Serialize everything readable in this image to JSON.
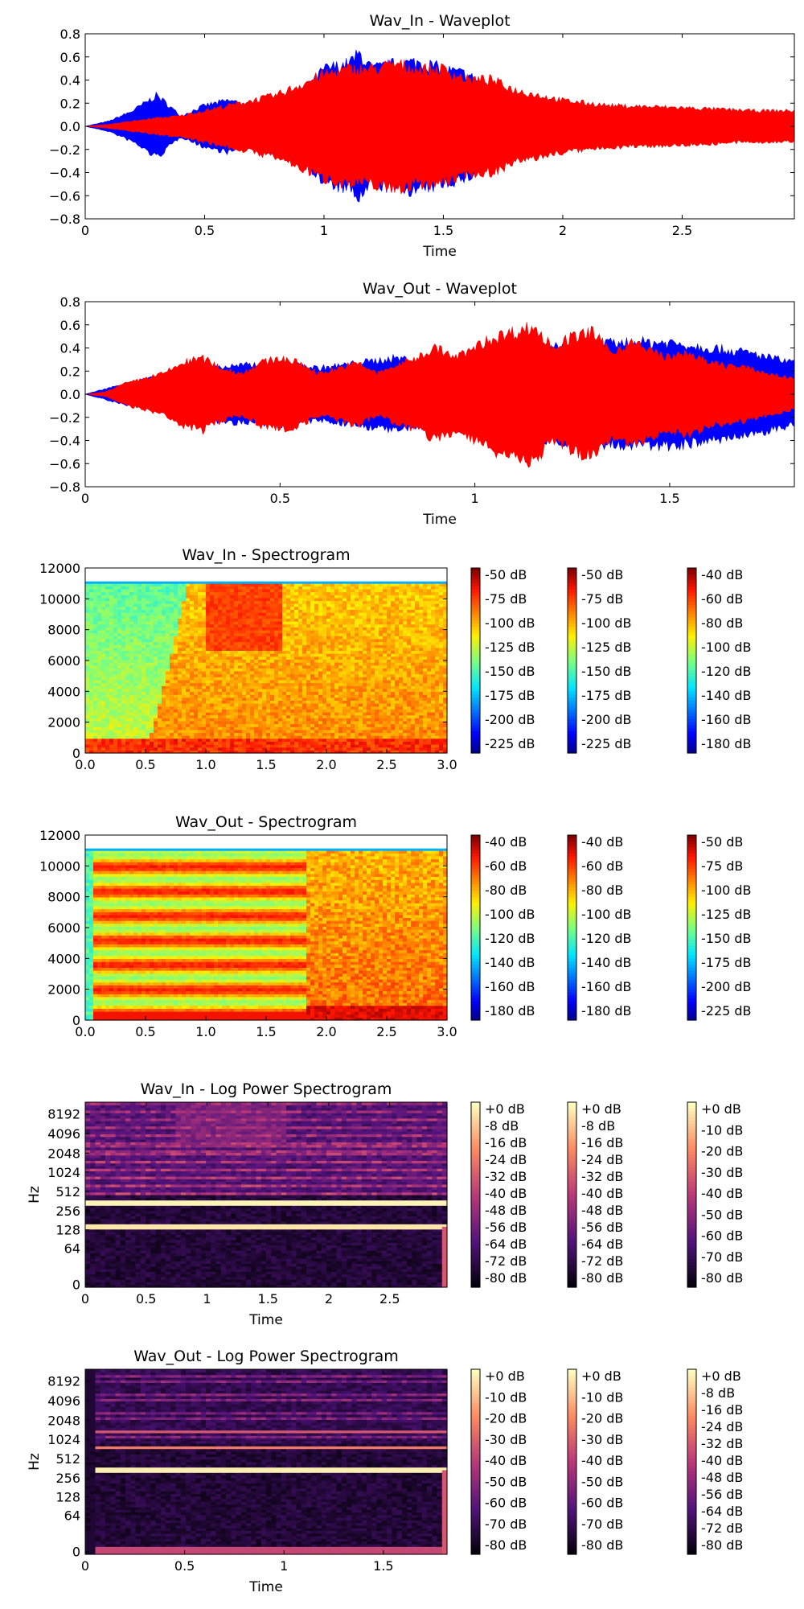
{
  "chart_data": [
    {
      "type": "line",
      "title": "Wav_In - Waveplot",
      "xlabel": "Time",
      "ylabel": "",
      "xlim": [
        0,
        2.97
      ],
      "ylim": [
        -0.8,
        0.8
      ],
      "x_ticks": [
        "0",
        "0.5",
        "1",
        "1.5",
        "2",
        "2.5"
      ],
      "y_ticks": [
        "0.8",
        "0.6",
        "0.4",
        "0.2",
        "0.0",
        "−0.2",
        "−0.4",
        "−0.6",
        "−0.8"
      ],
      "colors": [
        "#0000ff",
        "#ff0000"
      ],
      "series": [
        {
          "color": "#0000ff",
          "x": [
            0,
            0.1,
            0.2,
            0.3,
            0.4,
            0.5,
            0.6,
            0.7,
            0.8,
            0.9,
            1.0,
            1.1,
            1.15,
            1.2,
            1.3,
            1.4,
            1.5,
            1.6,
            1.7,
            1.8,
            1.9,
            2.0,
            2.5,
            2.97
          ],
          "values": [
            0,
            0.05,
            0.15,
            0.3,
            0.1,
            0.2,
            0.25,
            0.2,
            0.25,
            0.3,
            0.55,
            0.6,
            0.7,
            0.55,
            0.6,
            0.62,
            0.55,
            0.5,
            0.35,
            0.2,
            0.15,
            0.12,
            0.1,
            0.1
          ]
        },
        {
          "color": "#ff0000",
          "x": [
            0,
            0.1,
            0.2,
            0.3,
            0.4,
            0.5,
            0.6,
            0.7,
            0.8,
            0.9,
            1.0,
            1.1,
            1.2,
            1.3,
            1.4,
            1.5,
            1.6,
            1.7,
            1.8,
            1.9,
            2.0,
            2.2,
            2.5,
            2.8,
            2.97
          ],
          "values": [
            0,
            0.02,
            0.05,
            0.08,
            0.1,
            0.15,
            0.2,
            0.25,
            0.3,
            0.4,
            0.5,
            0.55,
            0.55,
            0.6,
            0.55,
            0.55,
            0.45,
            0.45,
            0.35,
            0.3,
            0.25,
            0.2,
            0.18,
            0.15,
            0.15
          ]
        }
      ]
    },
    {
      "type": "line",
      "title": "Wav_Out - Waveplot",
      "xlabel": "Time",
      "ylabel": "",
      "xlim": [
        0,
        1.82
      ],
      "ylim": [
        -0.8,
        0.8
      ],
      "x_ticks": [
        "0",
        "0.5",
        "1",
        "1.5"
      ],
      "y_ticks": [
        "0.8",
        "0.6",
        "0.4",
        "0.2",
        "0.0",
        "−0.2",
        "−0.4",
        "−0.6",
        "−0.8"
      ],
      "colors": [
        "#0000ff",
        "#ff0000"
      ],
      "series": [
        {
          "color": "#0000ff",
          "x": [
            0,
            0.1,
            0.3,
            0.5,
            0.6,
            0.7,
            0.8,
            0.9,
            1.0,
            1.2,
            1.4,
            1.5,
            1.6,
            1.7,
            1.82
          ],
          "values": [
            0,
            0.1,
            0.25,
            0.3,
            0.25,
            0.3,
            0.35,
            0.3,
            0.35,
            0.45,
            0.5,
            0.5,
            0.45,
            0.4,
            0.3
          ]
        },
        {
          "color": "#ff0000",
          "x": [
            0,
            0.05,
            0.1,
            0.15,
            0.2,
            0.25,
            0.3,
            0.35,
            0.4,
            0.45,
            0.5,
            0.55,
            0.6,
            0.65,
            0.7,
            0.75,
            0.8,
            0.85,
            0.9,
            0.95,
            1.0,
            1.05,
            1.1,
            1.15,
            1.2,
            1.25,
            1.3,
            1.35,
            1.4,
            1.45,
            1.5,
            1.55,
            1.6,
            1.65,
            1.7,
            1.75,
            1.82
          ],
          "values": [
            0,
            0.02,
            0.1,
            0.15,
            0.2,
            0.3,
            0.35,
            0.25,
            0.2,
            0.3,
            0.35,
            0.3,
            0.2,
            0.25,
            0.3,
            0.2,
            0.28,
            0.35,
            0.45,
            0.35,
            0.45,
            0.55,
            0.6,
            0.65,
            0.45,
            0.55,
            0.6,
            0.4,
            0.5,
            0.42,
            0.35,
            0.4,
            0.3,
            0.28,
            0.25,
            0.2,
            0.15
          ]
        }
      ]
    },
    {
      "type": "heatmap",
      "title": "Wav_In - Spectrogram",
      "xlabel": "",
      "ylabel": "",
      "xlim": [
        0,
        3.0
      ],
      "ylim": [
        0,
        12000
      ],
      "x_ticks": [
        "0.0",
        "0.5",
        "1.0",
        "1.5",
        "2.0",
        "2.5",
        "3.0"
      ],
      "y_ticks": [
        "12000",
        "10000",
        "8000",
        "6000",
        "4000",
        "2000",
        "0"
      ],
      "colormap": "jet",
      "colorbars": [
        [
          "-50 dB",
          "-75 dB",
          "-100 dB",
          "-125 dB",
          "-150 dB",
          "-175 dB",
          "-200 dB",
          "-225 dB"
        ],
        [
          "-50 dB",
          "-75 dB",
          "-100 dB",
          "-125 dB",
          "-150 dB",
          "-175 dB",
          "-200 dB",
          "-225 dB"
        ],
        [
          "-40 dB",
          "-60 dB",
          "-80 dB",
          "-100 dB",
          "-120 dB",
          "-140 dB",
          "-160 dB",
          "-180 dB"
        ]
      ]
    },
    {
      "type": "heatmap",
      "title": "Wav_Out - Spectrogram",
      "xlabel": "",
      "ylabel": "",
      "xlim": [
        0,
        3.0
      ],
      "ylim": [
        0,
        12000
      ],
      "x_ticks": [
        "0.0",
        "0.5",
        "1.0",
        "1.5",
        "2.0",
        "2.5",
        "3.0"
      ],
      "y_ticks": [
        "12000",
        "10000",
        "8000",
        "6000",
        "4000",
        "2000",
        "0"
      ],
      "colormap": "jet",
      "colorbars": [
        [
          "-40 dB",
          "-60 dB",
          "-80 dB",
          "-100 dB",
          "-120 dB",
          "-140 dB",
          "-160 dB",
          "-180 dB"
        ],
        [
          "-40 dB",
          "-60 dB",
          "-80 dB",
          "-100 dB",
          "-120 dB",
          "-140 dB",
          "-160 dB",
          "-180 dB"
        ],
        [
          "-50 dB",
          "-75 dB",
          "-100 dB",
          "-125 dB",
          "-150 dB",
          "-175 dB",
          "-200 dB",
          "-225 dB"
        ]
      ]
    },
    {
      "type": "heatmap",
      "title": "Wav_In - Log Power Spectrogram",
      "xlabel": "Time",
      "ylabel": "Hz",
      "xlim": [
        0,
        2.97
      ],
      "x_ticks": [
        "0",
        "0.5",
        "1",
        "1.5",
        "2",
        "2.5"
      ],
      "y_ticks": [
        "8192",
        "4096",
        "2048",
        "1024",
        "512",
        "256",
        "128",
        "64",
        "0"
      ],
      "colormap": "magma",
      "colorbars": [
        [
          "+0 dB",
          "-8 dB",
          "-16 dB",
          "-24 dB",
          "-32 dB",
          "-40 dB",
          "-48 dB",
          "-56 dB",
          "-64 dB",
          "-72 dB",
          "-80 dB"
        ],
        [
          "+0 dB",
          "-8 dB",
          "-16 dB",
          "-24 dB",
          "-32 dB",
          "-40 dB",
          "-48 dB",
          "-56 dB",
          "-64 dB",
          "-72 dB",
          "-80 dB"
        ],
        [
          "+0 dB",
          "-10 dB",
          "-20 dB",
          "-30 dB",
          "-40 dB",
          "-50 dB",
          "-60 dB",
          "-70 dB",
          "-80 dB"
        ]
      ]
    },
    {
      "type": "heatmap",
      "title": "Wav_Out - Log Power Spectrogram",
      "xlabel": "Time",
      "ylabel": "Hz",
      "xlim": [
        0,
        1.82
      ],
      "x_ticks": [
        "0",
        "0.5",
        "1",
        "1.5"
      ],
      "y_ticks": [
        "8192",
        "4096",
        "2048",
        "1024",
        "512",
        "256",
        "128",
        "64",
        "0"
      ],
      "colormap": "magma",
      "colorbars": [
        [
          "+0 dB",
          "-10 dB",
          "-20 dB",
          "-30 dB",
          "-40 dB",
          "-50 dB",
          "-60 dB",
          "-70 dB",
          "-80 dB"
        ],
        [
          "+0 dB",
          "-10 dB",
          "-20 dB",
          "-30 dB",
          "-40 dB",
          "-50 dB",
          "-60 dB",
          "-70 dB",
          "-80 dB"
        ],
        [
          "+0 dB",
          "-8 dB",
          "-16 dB",
          "-24 dB",
          "-32 dB",
          "-40 dB",
          "-48 dB",
          "-56 dB",
          "-64 dB",
          "-72 dB",
          "-80 dB"
        ]
      ]
    }
  ]
}
